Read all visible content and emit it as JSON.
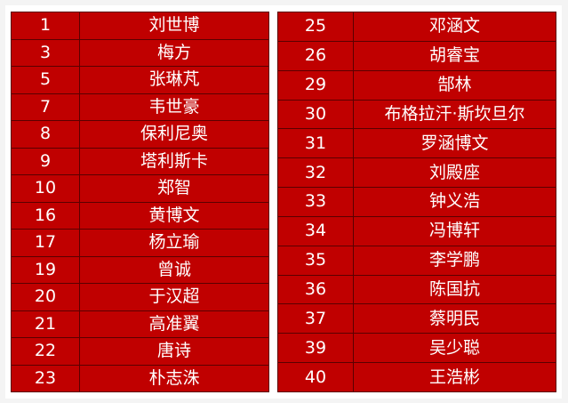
{
  "colors": {
    "cell_bg": "#c00000",
    "text": "#ffffff",
    "border": "#5a0000"
  },
  "left_table": [
    {
      "num": "1",
      "name": "刘世博"
    },
    {
      "num": "3",
      "name": "梅方"
    },
    {
      "num": "5",
      "name": "张琳芃"
    },
    {
      "num": "7",
      "name": "韦世豪"
    },
    {
      "num": "8",
      "name": "保利尼奥"
    },
    {
      "num": "9",
      "name": "塔利斯卡"
    },
    {
      "num": "10",
      "name": "郑智"
    },
    {
      "num": "16",
      "name": "黄博文"
    },
    {
      "num": "17",
      "name": "杨立瑜"
    },
    {
      "num": "19",
      "name": "曾诚"
    },
    {
      "num": "20",
      "name": "于汉超"
    },
    {
      "num": "21",
      "name": "高准翼"
    },
    {
      "num": "22",
      "name": "唐诗"
    },
    {
      "num": "23",
      "name": "朴志洙"
    }
  ],
  "right_table": [
    {
      "num": "25",
      "name": "邓涵文"
    },
    {
      "num": "26",
      "name": "胡睿宝"
    },
    {
      "num": "29",
      "name": "郜林"
    },
    {
      "num": "30",
      "name": "布格拉汗·斯坎旦尔"
    },
    {
      "num": "31",
      "name": "罗涵博文"
    },
    {
      "num": "32",
      "name": "刘殿座"
    },
    {
      "num": "33",
      "name": "钟义浩"
    },
    {
      "num": "34",
      "name": "冯博轩"
    },
    {
      "num": "35",
      "name": "李学鹏"
    },
    {
      "num": "36",
      "name": "陈国抗"
    },
    {
      "num": "37",
      "name": "蔡明民"
    },
    {
      "num": "39",
      "name": "吴少聪"
    },
    {
      "num": "40",
      "name": "王浩彬"
    }
  ]
}
